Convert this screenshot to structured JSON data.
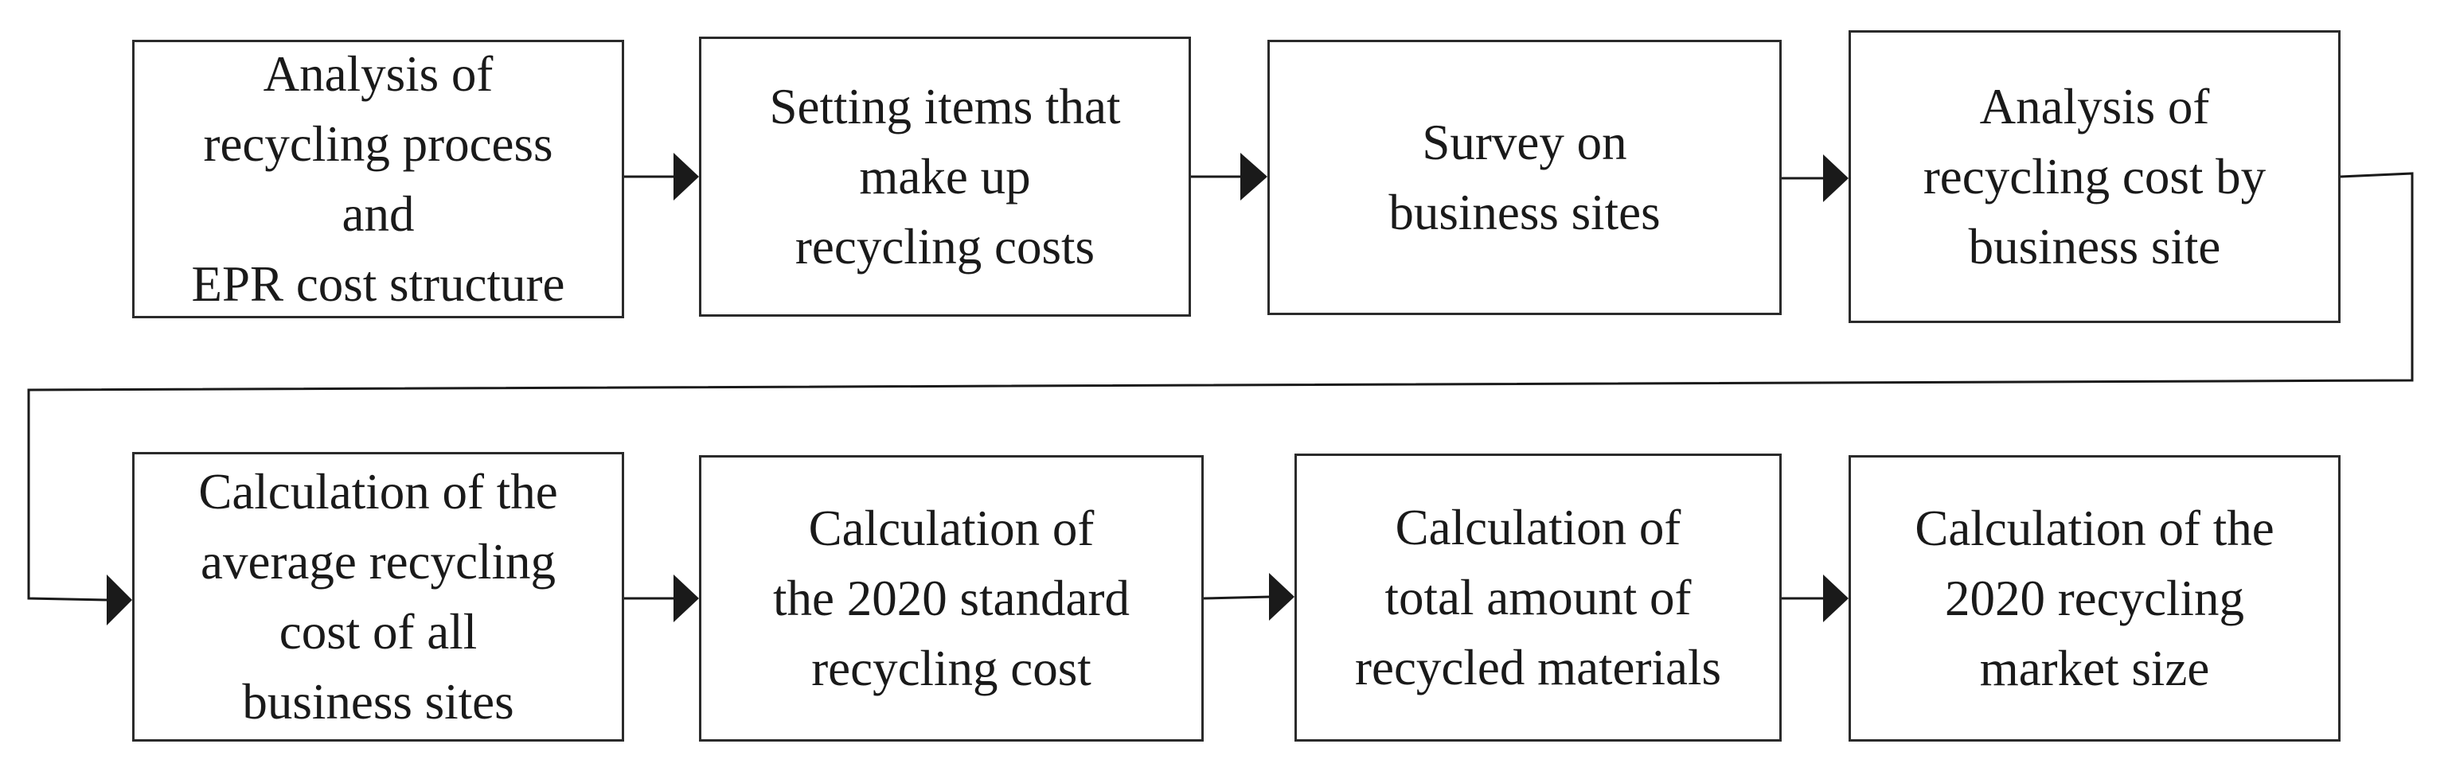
{
  "diagram": {
    "row1": [
      {
        "id": "s1",
        "text": "Analysis of\nrecycling process\nand\nEPR cost structure"
      },
      {
        "id": "s2",
        "text": "Setting items that\nmake up\nrecycling costs"
      },
      {
        "id": "s3",
        "text": "Survey on\nbusiness sites"
      },
      {
        "id": "s4",
        "text": "Analysis of\nrecycling cost by\nbusiness site"
      }
    ],
    "row2": [
      {
        "id": "s5",
        "text": "Calculation of the\naverage recycling\ncost of all\nbusiness sites"
      },
      {
        "id": "s6",
        "text": "Calculation of\nthe 2020 standard\nrecycling cost"
      },
      {
        "id": "s7",
        "text": "Calculation of\ntotal amount of\nrecycled materials"
      },
      {
        "id": "s8",
        "text": "Calculation of the\n2020 recycling\nmarket size"
      }
    ],
    "colors": {
      "border": "#2b2b2b",
      "text": "#1a1a1a",
      "arrow": "#1a1a1a",
      "background": "#ffffff"
    }
  }
}
